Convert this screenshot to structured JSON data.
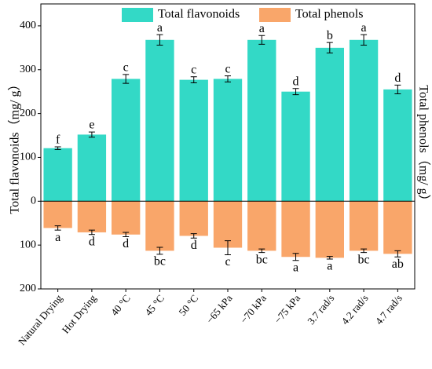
{
  "chart_data": {
    "type": "bar",
    "y_label": "Total flavonoids（mg/ g）",
    "y2_label": "Total phenols（mg/ g）",
    "categories": [
      "Natural Drying",
      "Hot Drying",
      "40 °C",
      "45 °C",
      "50 °C",
      "−65 kPa",
      "−70 kPa",
      "−75 kPa",
      "3.7 rad/s",
      "4.2 rad/s",
      "4.7 rad/s"
    ],
    "series": [
      {
        "name": "Total flavonoids",
        "color": "#33d9c6",
        "values": [
          121,
          152,
          279,
          368,
          277,
          279,
          368,
          250,
          350,
          368,
          255
        ],
        "errors": [
          3,
          6,
          10,
          12,
          7,
          7,
          10,
          7,
          12,
          12,
          10
        ],
        "letters": [
          "f",
          "e",
          "c",
          "a",
          "c",
          "c",
          "a",
          "d",
          "b",
          "a",
          "d"
        ]
      },
      {
        "name": "Total phenols",
        "color": "#f9a66a",
        "values": [
          -61,
          -71,
          -76,
          -113,
          -79,
          -106,
          -113,
          -127,
          -129,
          -113,
          -120
        ],
        "errors": [
          5,
          5,
          5,
          8,
          5,
          16,
          4,
          8,
          3,
          4,
          7
        ],
        "letters": [
          "a",
          "d",
          "d",
          "bc",
          "d",
          "c",
          "bc",
          "a",
          "a",
          "bc",
          "ab"
        ]
      }
    ],
    "ylim": [
      -200,
      450
    ],
    "yticks": [
      {
        "value": -200,
        "label": "200"
      },
      {
        "value": -100,
        "label": "100"
      },
      0,
      100,
      200,
      300,
      400
    ],
    "legend": "top"
  }
}
